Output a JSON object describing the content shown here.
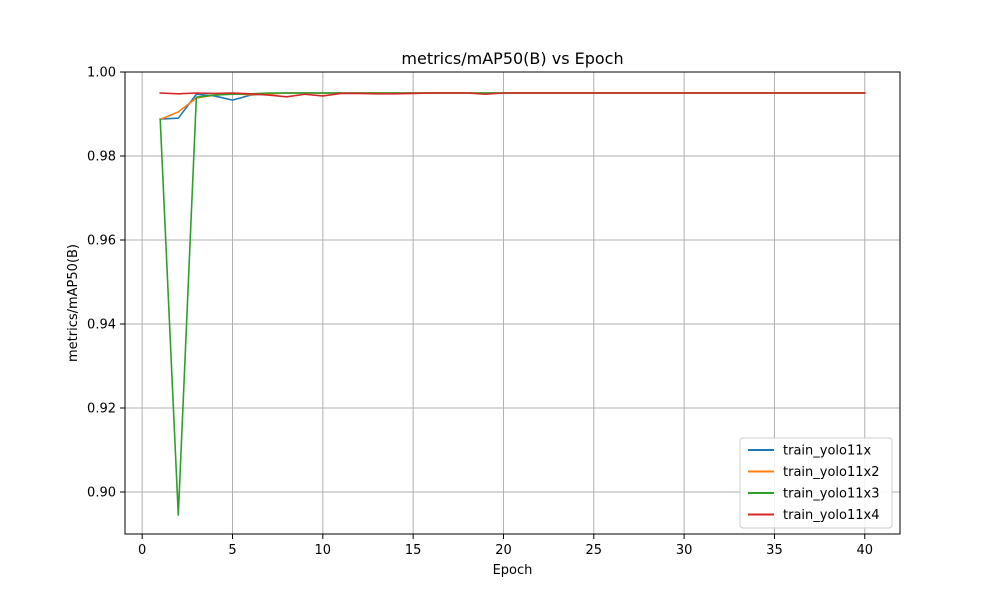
{
  "chart_data": {
    "type": "line",
    "title": "metrics/mAP50(B) vs Epoch",
    "xlabel": "Epoch",
    "ylabel": "metrics/mAP50(B)",
    "xlim": [
      -0.95,
      41.95
    ],
    "ylim": [
      0.89,
      1.0
    ],
    "xticks": [
      0,
      5,
      10,
      15,
      20,
      25,
      30,
      35,
      40
    ],
    "yticks": [
      0.9,
      0.92,
      0.94,
      0.96,
      0.98,
      1.0
    ],
    "xtick_labels": [
      "0",
      "5",
      "10",
      "15",
      "20",
      "25",
      "30",
      "35",
      "40"
    ],
    "ytick_labels": [
      "0.90",
      "0.92",
      "0.94",
      "0.96",
      "0.98",
      "1.00"
    ],
    "grid": true,
    "legend_position": "lower-right",
    "x": [
      1,
      2,
      3,
      4,
      5,
      6,
      7,
      8,
      9,
      10,
      11,
      12,
      13,
      14,
      15,
      16,
      17,
      18,
      19,
      20,
      21,
      22,
      23,
      24,
      25,
      26,
      27,
      28,
      29,
      30,
      31,
      32,
      33,
      34,
      35,
      36,
      37,
      38,
      39,
      40
    ],
    "series": [
      {
        "name": "train_yolo11x",
        "color": "#1f77b4",
        "values": [
          0.9888,
          0.989,
          0.9947,
          0.9943,
          0.9933,
          0.9945,
          0.9948,
          0.995,
          0.995,
          0.995,
          0.995,
          0.995,
          0.995,
          0.995,
          0.995,
          0.995,
          0.995,
          0.995,
          0.995,
          0.995,
          0.995,
          0.995,
          0.995,
          0.995,
          0.995,
          0.995,
          0.995,
          0.995,
          0.995,
          0.995,
          0.995,
          0.995,
          0.995,
          0.995,
          0.995,
          0.995,
          0.995,
          0.995,
          0.995,
          0.995
        ]
      },
      {
        "name": "train_yolo11x2",
        "color": "#ff7f0e",
        "values": [
          0.9887,
          0.9905,
          0.9938,
          0.9945,
          0.9948,
          0.9946,
          0.9948,
          0.995,
          0.995,
          0.995,
          0.995,
          0.995,
          0.995,
          0.995,
          0.995,
          0.995,
          0.995,
          0.995,
          0.995,
          0.995,
          0.995,
          0.995,
          0.995,
          0.995,
          0.995,
          0.995,
          0.995,
          0.995,
          0.995,
          0.995,
          0.995,
          0.995,
          0.995,
          0.995,
          0.995,
          0.995,
          0.995,
          0.995,
          0.995,
          0.995
        ]
      },
      {
        "name": "train_yolo11x3",
        "color": "#2ca02c",
        "values": [
          0.9886,
          0.8945,
          0.994,
          0.9945,
          0.9947,
          0.9948,
          0.995,
          0.995,
          0.995,
          0.995,
          0.995,
          0.995,
          0.995,
          0.995,
          0.995,
          0.995,
          0.995,
          0.995,
          0.995,
          0.995,
          0.995,
          0.995,
          0.995,
          0.995,
          0.995,
          0.995,
          0.995,
          0.995,
          0.995,
          0.995,
          0.995,
          0.995,
          0.995,
          0.995,
          0.995,
          0.995,
          0.995,
          0.995,
          0.995,
          0.995
        ]
      },
      {
        "name": "train_yolo11x4",
        "color": "#d62728",
        "values": [
          0.995,
          0.9948,
          0.995,
          0.9949,
          0.995,
          0.9948,
          0.9945,
          0.9941,
          0.9947,
          0.9943,
          0.9949,
          0.9949,
          0.9948,
          0.9948,
          0.9949,
          0.995,
          0.995,
          0.995,
          0.9947,
          0.995,
          0.995,
          0.995,
          0.995,
          0.995,
          0.995,
          0.995,
          0.995,
          0.995,
          0.995,
          0.995,
          0.995,
          0.995,
          0.995,
          0.995,
          0.995,
          0.995,
          0.995,
          0.995,
          0.995,
          0.995
        ]
      }
    ]
  }
}
